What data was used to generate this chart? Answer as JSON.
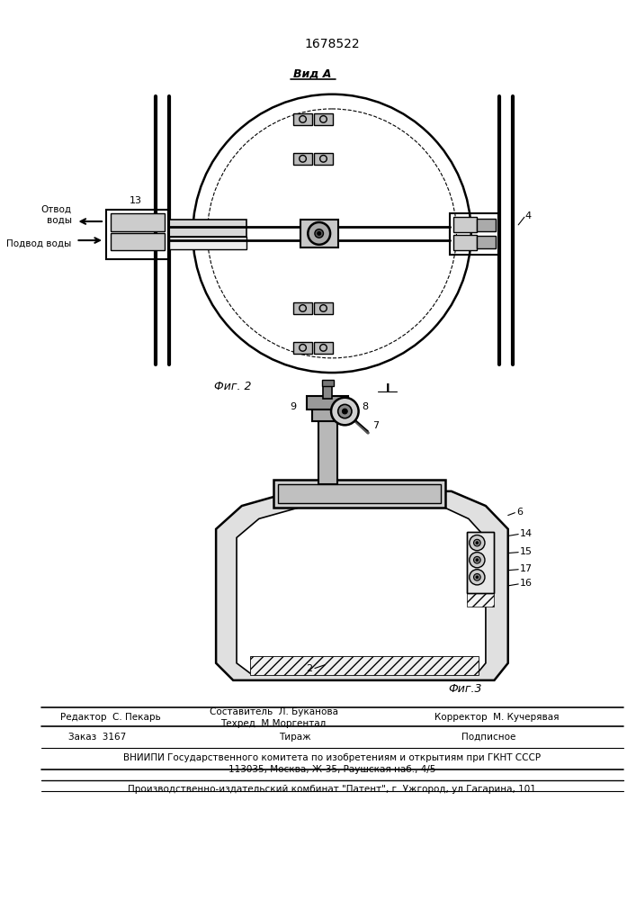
{
  "title": "1678522",
  "view_label": "Вид А",
  "fig2_label": "Фиг. 2",
  "fig3_label": "Фиг.3",
  "label_otv": "Отвод\nводы",
  "label_pod": "Подвод воды",
  "num_13": "13",
  "num_4": "4",
  "num_1": "I",
  "num_2": "2",
  "num_6": "6",
  "num_7": "7",
  "num_8": "8",
  "num_9": "9",
  "num_14": "14",
  "num_15": "15",
  "num_16": "16",
  "num_17": "17",
  "footer_line1": "Редактор  С. Пекарь",
  "footer_col2_line1": "Составитель  Л. Буканова",
  "footer_col2_line2": "Техред  М.Моргентал",
  "footer_col3": "Корректор  М. Кучерявая",
  "footer_zakaz": "Заказ  3167",
  "footer_tirazh": "Тираж",
  "footer_podpisnoe": "Подписное",
  "footer_vniipи": "ВНИИПИ Государственного комитета по изобретениям и открытиям при ГКНТ СССР",
  "footer_address": "113035, Москва, Ж-35, Раушская наб., 4/5",
  "footer_factory": "Производственно-издательский комбинат \"Патент\", г. Ужгород, ул.Гагарина, 101",
  "bg_color": "#ffffff",
  "line_color": "#000000",
  "fig_width": 7.07,
  "fig_height": 10.0
}
